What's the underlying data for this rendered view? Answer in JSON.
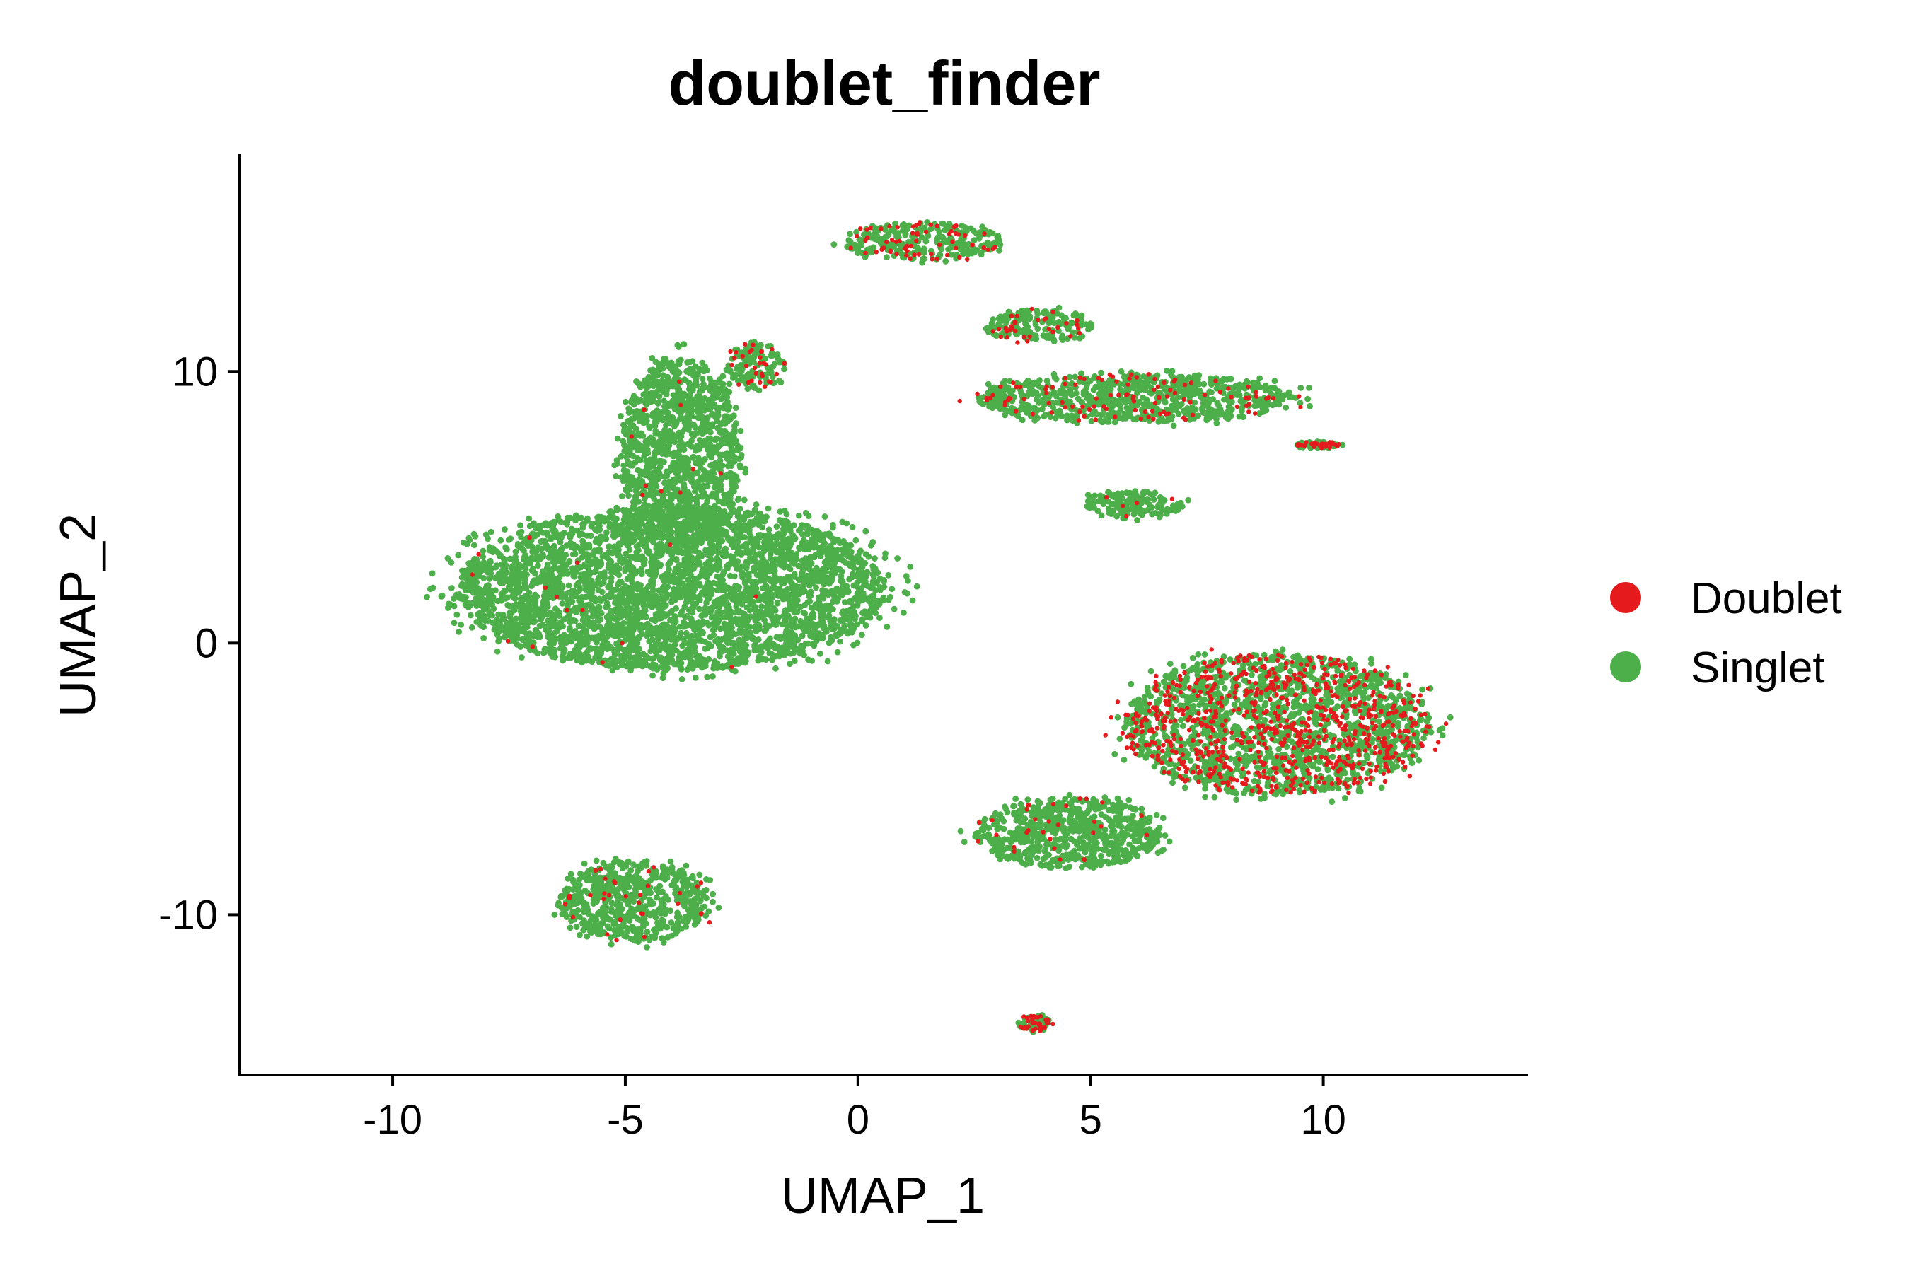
{
  "chart_data": {
    "type": "scatter",
    "title": "doublet_finder",
    "xlabel": "UMAP_1",
    "ylabel": "UMAP_2",
    "xlim": [
      -13.3,
      14.4
    ],
    "ylim": [
      -15.9,
      18.0
    ],
    "xticks": [
      -10,
      -5,
      0,
      5,
      10
    ],
    "xtick_labels": [
      "-10",
      "-5",
      "0",
      "5",
      "10"
    ],
    "yticks": [
      -10,
      0,
      10
    ],
    "ytick_labels": [
      "-10",
      "0",
      "10"
    ],
    "grid": false,
    "legend_position": "right",
    "series": [
      {
        "name": "Doublet",
        "color": "#E41A1C"
      },
      {
        "name": "Singlet",
        "color": "#4DAF4A"
      }
    ],
    "clusters": [
      {
        "id": "main-mass",
        "center": [
          -4.0,
          2.0
        ],
        "spread": [
          4.6,
          3.0
        ],
        "doublet_fraction": 0.004
      },
      {
        "id": "upper-arm",
        "center": [
          -3.8,
          7.0
        ],
        "spread": [
          1.3,
          3.5
        ],
        "doublet_fraction": 0.01
      },
      {
        "id": "upper-arm-tip",
        "center": [
          -2.2,
          10.2
        ],
        "spread": [
          0.6,
          0.9
        ],
        "doublet_fraction": 0.25
      },
      {
        "id": "lower-blob",
        "center": [
          -4.8,
          -9.5
        ],
        "spread": [
          1.6,
          1.5
        ],
        "doublet_fraction": 0.05
      },
      {
        "id": "top-island",
        "center": [
          1.4,
          14.8
        ],
        "spread": [
          1.7,
          0.7
        ],
        "doublet_fraction": 0.2
      },
      {
        "id": "small-island-12",
        "center": [
          3.9,
          11.7
        ],
        "spread": [
          1.2,
          0.6
        ],
        "doublet_fraction": 0.15
      },
      {
        "id": "band-9",
        "center": [
          6.0,
          9.0
        ],
        "spread": [
          3.5,
          0.9
        ],
        "doublet_fraction": 0.12
      },
      {
        "id": "island-5",
        "center": [
          5.9,
          5.1
        ],
        "spread": [
          1.1,
          0.5
        ],
        "doublet_fraction": 0.03
      },
      {
        "id": "tiny-7",
        "center": [
          9.9,
          7.3
        ],
        "spread": [
          0.5,
          0.12
        ],
        "doublet_fraction": 0.3
      },
      {
        "id": "right-region",
        "center": [
          9.0,
          -3.0
        ],
        "spread": [
          3.3,
          2.6
        ],
        "doublet_fraction": 0.35
      },
      {
        "id": "right-lower",
        "center": [
          4.5,
          -7.0
        ],
        "spread": [
          2.0,
          1.3
        ],
        "doublet_fraction": 0.05
      },
      {
        "id": "bottom-tiny",
        "center": [
          3.8,
          -14.0
        ],
        "spread": [
          0.35,
          0.3
        ],
        "doublet_fraction": 0.4
      }
    ]
  }
}
